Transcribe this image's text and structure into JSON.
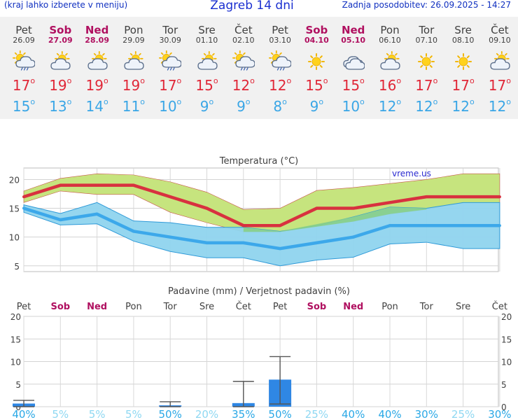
{
  "header": {
    "left_note": "(kraj lahko izberete v meniju)",
    "title": "Zagreb 14 dni",
    "updated": "Zadnja posodobitev: 26.09.2025 - 14:27"
  },
  "days": [
    {
      "name": "Pet",
      "date": "26.09",
      "weekend": false,
      "icon": "sun-cloud-rain-icon",
      "tmax": "17",
      "tmin": "15"
    },
    {
      "name": "Sob",
      "date": "27.09",
      "weekend": true,
      "icon": "sun-cloud-icon",
      "tmax": "19",
      "tmin": "13"
    },
    {
      "name": "Ned",
      "date": "28.09",
      "weekend": true,
      "icon": "sun-cloud-icon",
      "tmax": "19",
      "tmin": "14"
    },
    {
      "name": "Pon",
      "date": "29.09",
      "weekend": false,
      "icon": "sun-cloud-icon",
      "tmax": "19",
      "tmin": "11"
    },
    {
      "name": "Tor",
      "date": "30.09",
      "weekend": false,
      "icon": "sun-cloud-rain-icon",
      "tmax": "17",
      "tmin": "10"
    },
    {
      "name": "Sre",
      "date": "01.10",
      "weekend": false,
      "icon": "sun-cloud-icon",
      "tmax": "15",
      "tmin": "9"
    },
    {
      "name": "Čet",
      "date": "02.10",
      "weekend": false,
      "icon": "sun-cloud-rain-icon",
      "tmax": "12",
      "tmin": "9"
    },
    {
      "name": "Pet",
      "date": "03.10",
      "weekend": false,
      "icon": "sun-cloud-rain-icon",
      "tmax": "12",
      "tmin": "8"
    },
    {
      "name": "Sob",
      "date": "04.10",
      "weekend": true,
      "icon": "sun-icon",
      "tmax": "15",
      "tmin": "9"
    },
    {
      "name": "Ned",
      "date": "05.10",
      "weekend": true,
      "icon": "cloud-icon",
      "tmax": "15",
      "tmin": "10"
    },
    {
      "name": "Pon",
      "date": "06.10",
      "weekend": false,
      "icon": "sun-cloud-icon",
      "tmax": "16",
      "tmin": "12"
    },
    {
      "name": "Tor",
      "date": "07.10",
      "weekend": false,
      "icon": "sun-icon",
      "tmax": "17",
      "tmin": "12"
    },
    {
      "name": "Sre",
      "date": "08.10",
      "weekend": false,
      "icon": "sun-icon",
      "tmax": "17",
      "tmin": "12"
    },
    {
      "name": "Čet",
      "date": "09.10",
      "weekend": false,
      "icon": "sun-cloud-icon",
      "tmax": "17",
      "tmin": "12"
    }
  ],
  "colors": {
    "max_line": "#d8313f",
    "min_line": "#3ca8ea",
    "max_band": "#c6e47e",
    "min_band": "#8fd4ee",
    "overlap_band": "#88cf88",
    "precip_bar": "#2f87e4",
    "probability_text": "#2aa8e6",
    "weekend": "#b01060"
  },
  "chart_data": [
    {
      "type": "area",
      "title": "Temperatura (°C)",
      "watermark": "vreme.us",
      "ylim": [
        4,
        22
      ],
      "yticks": [
        5,
        10,
        15,
        20
      ],
      "x": [
        "Pet",
        "Sob",
        "Ned",
        "Pon",
        "Tor",
        "Sre",
        "Čet",
        "Pet",
        "Sob",
        "Ned",
        "Pon",
        "Tor",
        "Sre",
        "Čet"
      ],
      "series": [
        {
          "values": [
            17,
            19,
            19,
            19,
            17,
            15,
            12,
            12,
            15,
            15,
            16,
            17,
            17,
            17
          ]
        },
        {
          "values": [
            18,
            20.2,
            21,
            20.8,
            19.6,
            17.8,
            14.8,
            15,
            18.1,
            18.6,
            19.3,
            20,
            21,
            21
          ]
        },
        {
          "values": [
            16,
            18,
            17.4,
            17.4,
            14.3,
            12.5,
            10.9,
            10.9,
            12,
            12.7,
            14,
            14.8,
            16,
            16
          ]
        },
        {
          "values": [
            15,
            13,
            14,
            11,
            10,
            9,
            9,
            8,
            9,
            10,
            12,
            12,
            12,
            12
          ]
        },
        {
          "values": [
            15.6,
            14.1,
            16,
            12.8,
            12.5,
            11.7,
            11.7,
            11,
            12,
            13.5,
            15.2,
            15,
            16,
            16
          ]
        },
        {
          "values": [
            14.3,
            12.1,
            12.3,
            9.3,
            7.5,
            6.4,
            6.4,
            5,
            6,
            6.5,
            8.8,
            9.1,
            8,
            8
          ]
        }
      ],
      "grid": true
    },
    {
      "type": "bar",
      "title": "Padavine (mm) / Verjetnost padavin (%)",
      "categories": [
        "Pet",
        "Sob",
        "Ned",
        "Pon",
        "Tor",
        "Sre",
        "Čet",
        "Pet",
        "Sob",
        "Ned",
        "Pon",
        "Tor",
        "Sre",
        "Čet"
      ],
      "weekend": [
        false,
        true,
        true,
        false,
        false,
        false,
        false,
        false,
        true,
        true,
        false,
        false,
        false,
        false
      ],
      "values": [
        0.7,
        0,
        0,
        0,
        0.3,
        0,
        0.8,
        6,
        0,
        0,
        0,
        0,
        0,
        0
      ],
      "error_low": [
        0,
        0,
        0,
        0,
        0,
        0,
        0,
        0.6,
        0,
        0,
        0,
        0,
        0,
        0
      ],
      "error_high": [
        1.4,
        0,
        0,
        0,
        1.1,
        0,
        5.6,
        11.1,
        0,
        0,
        0,
        0,
        0,
        0
      ],
      "probability": [
        "40%",
        "5%",
        "5%",
        "5%",
        "50%",
        "20%",
        "35%",
        "50%",
        "25%",
        "40%",
        "40%",
        "30%",
        "25%",
        "30%"
      ],
      "probability_bold": [
        true,
        false,
        false,
        false,
        true,
        false,
        true,
        true,
        false,
        true,
        true,
        true,
        false,
        true
      ],
      "ylim": [
        0,
        20
      ],
      "yticks": [
        0,
        5,
        10,
        15,
        20
      ],
      "grid": true
    }
  ]
}
